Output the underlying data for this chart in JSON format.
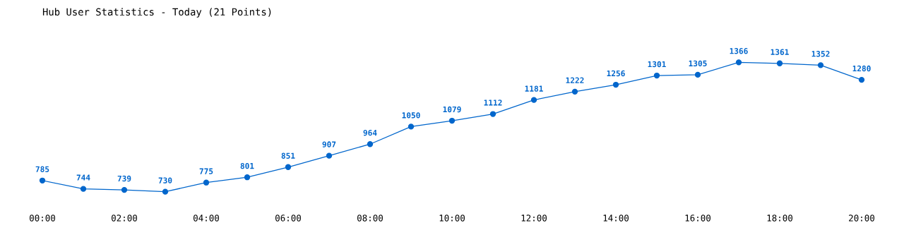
{
  "chart_data": {
    "type": "line",
    "title": "Hub User Statistics - Today (21 Points)",
    "x": [
      0,
      1,
      2,
      3,
      4,
      5,
      6,
      7,
      8,
      9,
      10,
      11,
      12,
      13,
      14,
      15,
      16,
      17,
      18,
      19,
      20
    ],
    "values": [
      785,
      744,
      739,
      730,
      775,
      801,
      851,
      907,
      964,
      1050,
      1079,
      1112,
      1181,
      1222,
      1256,
      1301,
      1305,
      1366,
      1361,
      1352,
      1280
    ],
    "color": "#0066cc",
    "marker": "circle",
    "line_style": "solid",
    "data_labels": true,
    "grid": false,
    "legend": false,
    "tick_labels": "x",
    "xlim": [
      0,
      20
    ],
    "xticks": [
      {
        "value": 0,
        "label": "00:00"
      },
      {
        "value": 2,
        "label": "02:00"
      },
      {
        "value": 4,
        "label": "04:00"
      },
      {
        "value": 6,
        "label": "06:00"
      },
      {
        "value": 8,
        "label": "08:00"
      },
      {
        "value": 10,
        "label": "10:00"
      },
      {
        "value": 12,
        "label": "12:00"
      },
      {
        "value": 14,
        "label": "14:00"
      },
      {
        "value": 16,
        "label": "16:00"
      },
      {
        "value": 18,
        "label": "18:00"
      },
      {
        "value": 20,
        "label": "20:00"
      }
    ]
  }
}
